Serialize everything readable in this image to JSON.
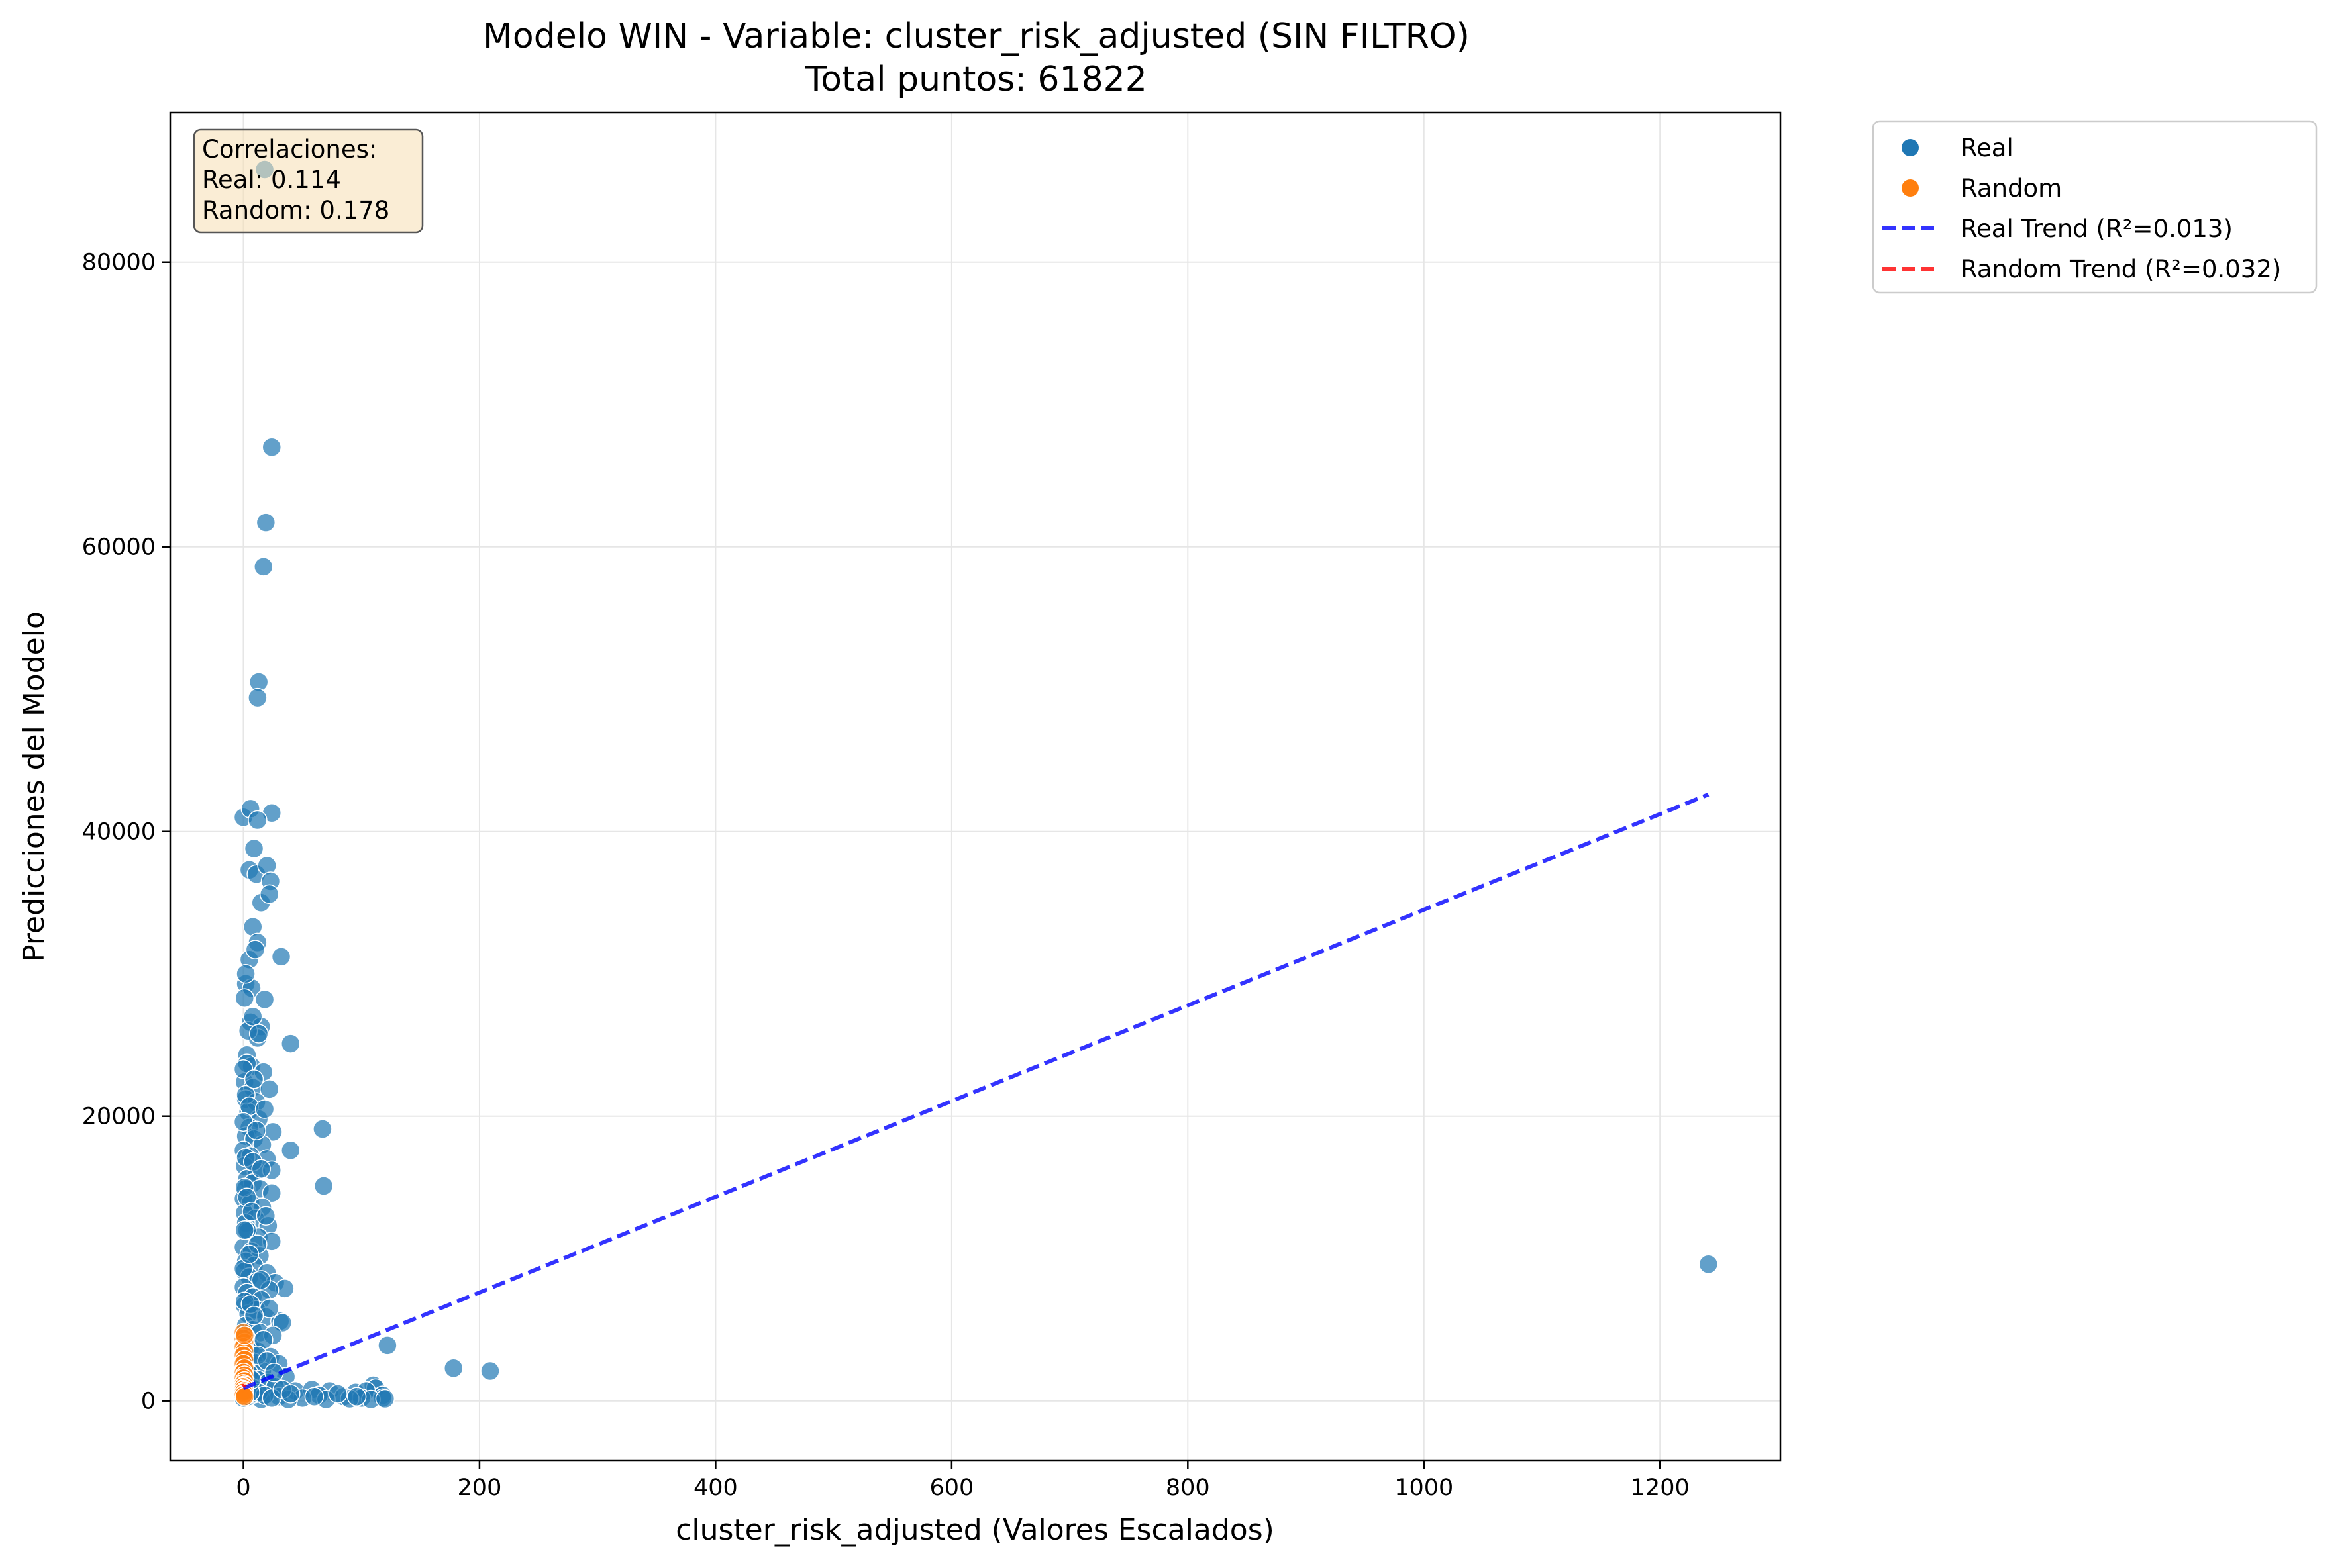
{
  "chart_data": {
    "type": "scatter",
    "title": "Modelo WIN - Variable: cluster_risk_adjusted (SIN FILTRO)",
    "subtitle": "Total puntos: 61822",
    "xlabel": "cluster_risk_adjusted (Valores Escalados)",
    "ylabel": "Predicciones del Modelo",
    "xlim": [
      -62,
      1302
    ],
    "ylim": [
      -4200,
      90500
    ],
    "xticks": [
      0,
      200,
      400,
      600,
      800,
      1000,
      1200
    ],
    "yticks": [
      0,
      20000,
      40000,
      60000,
      80000
    ],
    "grid": true,
    "legend_position": "outside-top-right",
    "colors": {
      "real": "#1f77b4",
      "random": "#ff7f0e",
      "real_trend": "#0000ff",
      "random_trend": "#ff0000"
    },
    "annotation": {
      "lines": [
        "Correlaciones:",
        "Real: 0.114",
        "Random: 0.178"
      ]
    },
    "legend": [
      {
        "key": "real",
        "label": "Real"
      },
      {
        "key": "random",
        "label": "Random"
      },
      {
        "key": "real_trend",
        "label": "Real Trend (R²=0.013)"
      },
      {
        "key": "random_trend",
        "label": "Random Trend (R²=0.032)"
      }
    ],
    "series": [
      {
        "name": "Real",
        "points": [
          [
            0,
            41000
          ],
          [
            6,
            41600
          ],
          [
            24,
            41300
          ],
          [
            12,
            40800
          ],
          [
            9,
            38800
          ],
          [
            5,
            37300
          ],
          [
            11,
            37000
          ],
          [
            20,
            37600
          ],
          [
            23,
            36500
          ],
          [
            15,
            35000
          ],
          [
            22,
            35600
          ],
          [
            8,
            33300
          ],
          [
            12,
            32200
          ],
          [
            5,
            31000
          ],
          [
            10,
            31700
          ],
          [
            32,
            31200
          ],
          [
            2,
            29300
          ],
          [
            7,
            29000
          ],
          [
            18,
            28200
          ],
          [
            1,
            28300
          ],
          [
            6,
            26600
          ],
          [
            15,
            26300
          ],
          [
            12,
            25500
          ],
          [
            40,
            25100
          ],
          [
            3,
            24300
          ],
          [
            7,
            23500
          ],
          [
            17,
            23100
          ],
          [
            1,
            22400
          ],
          [
            8,
            22000
          ],
          [
            22,
            21900
          ],
          [
            2,
            21200
          ],
          [
            11,
            21000
          ],
          [
            4,
            20300
          ],
          [
            13,
            19800
          ],
          [
            5,
            19200
          ],
          [
            25,
            18900
          ],
          [
            67,
            19100
          ],
          [
            2,
            18600
          ],
          [
            9,
            18400
          ],
          [
            16,
            18000
          ],
          [
            0,
            17600
          ],
          [
            6,
            17200
          ],
          [
            40,
            17600
          ],
          [
            20,
            17000
          ],
          [
            1,
            16500
          ],
          [
            11,
            16100
          ],
          [
            24,
            16200
          ],
          [
            3,
            15600
          ],
          [
            8,
            15300
          ],
          [
            68,
            15100
          ],
          [
            2,
            14900
          ],
          [
            14,
            14900
          ],
          [
            24,
            14600
          ],
          [
            0,
            14200
          ],
          [
            6,
            13900
          ],
          [
            16,
            13600
          ],
          [
            1,
            13200
          ],
          [
            10,
            12800
          ],
          [
            2,
            12500
          ],
          [
            21,
            12300
          ],
          [
            4,
            11900
          ],
          [
            13,
            11500
          ],
          [
            24,
            11200
          ],
          [
            0,
            10800
          ],
          [
            7,
            10500
          ],
          [
            14,
            10200
          ],
          [
            2,
            9800
          ],
          [
            9,
            9500
          ],
          [
            1,
            9100
          ],
          [
            20,
            9000
          ],
          [
            5,
            8700
          ],
          [
            12,
            8400
          ],
          [
            27,
            8300
          ],
          [
            0,
            8000
          ],
          [
            35,
            7900
          ],
          [
            22,
            7800
          ],
          [
            3,
            7600
          ],
          [
            8,
            7300
          ],
          [
            15,
            7100
          ],
          [
            1,
            6700
          ],
          [
            11,
            6400
          ],
          [
            4,
            6100
          ],
          [
            19,
            5900
          ],
          [
            31,
            5600
          ],
          [
            33,
            5500
          ],
          [
            2,
            5300
          ],
          [
            8,
            5000
          ],
          [
            14,
            4800
          ],
          [
            25,
            4600
          ],
          [
            122,
            3900
          ],
          [
            0,
            4200
          ],
          [
            6,
            3800
          ],
          [
            12,
            3500
          ],
          [
            23,
            3100
          ],
          [
            3,
            3000
          ],
          [
            9,
            2700
          ],
          [
            30,
            2600
          ],
          [
            1,
            2400
          ],
          [
            178,
            2300
          ],
          [
            209,
            2100
          ],
          [
            16,
            2100
          ],
          [
            5,
            1900
          ],
          [
            36,
            1700
          ],
          [
            12,
            1500
          ],
          [
            21,
            1300
          ],
          [
            3,
            1200
          ],
          [
            27,
            1000
          ],
          [
            8,
            900
          ],
          [
            44,
            700
          ],
          [
            58,
            800
          ],
          [
            73,
            700
          ],
          [
            95,
            600
          ],
          [
            110,
            1100
          ],
          [
            112,
            900
          ],
          [
            104,
            700
          ],
          [
            118,
            400
          ],
          [
            64,
            400
          ],
          [
            85,
            300
          ],
          [
            100,
            200
          ],
          [
            118,
            200
          ],
          [
            30,
            300
          ],
          [
            50,
            200
          ],
          [
            70,
            100
          ],
          [
            90,
            150
          ],
          [
            108,
            100
          ],
          [
            120,
            150
          ],
          [
            15,
            100
          ],
          [
            38,
            100
          ],
          [
            0,
            200
          ],
          [
            4,
            300
          ],
          [
            9,
            500
          ],
          [
            13,
            600
          ],
          [
            18,
            400
          ],
          [
            24,
            200
          ],
          [
            1241,
            9600
          ],
          [
            6,
            600
          ],
          [
            1,
            15000
          ],
          [
            2,
            21500
          ],
          [
            0,
            9300
          ],
          [
            3,
            12000
          ],
          [
            4,
            26000
          ],
          [
            2,
            30000
          ],
          [
            8,
            27000
          ],
          [
            13,
            25800
          ],
          [
            3,
            23700
          ],
          [
            0,
            23300
          ],
          [
            9,
            22600
          ],
          [
            5,
            20700
          ],
          [
            18,
            20500
          ],
          [
            0,
            19600
          ],
          [
            11,
            19000
          ],
          [
            2,
            17100
          ],
          [
            8,
            16800
          ],
          [
            15,
            16300
          ],
          [
            3,
            14300
          ],
          [
            7,
            13300
          ],
          [
            19,
            13000
          ],
          [
            1,
            12000
          ],
          [
            12,
            11000
          ],
          [
            5,
            10300
          ],
          [
            15,
            8500
          ],
          [
            1,
            7000
          ],
          [
            6,
            6800
          ],
          [
            22,
            6500
          ],
          [
            9,
            6000
          ],
          [
            2,
            4500
          ],
          [
            17,
            4300
          ],
          [
            12,
            3200
          ],
          [
            20,
            2800
          ],
          [
            26,
            2000
          ],
          [
            7,
            1500
          ],
          [
            33,
            800
          ],
          [
            40,
            500
          ],
          [
            60,
            300
          ],
          [
            80,
            500
          ],
          [
            96,
            300
          ],
          [
            24,
            67000
          ],
          [
            19,
            61700
          ],
          [
            17,
            58600
          ],
          [
            13,
            50500
          ],
          [
            12,
            49400
          ],
          [
            18,
            86500
          ]
        ]
      },
      {
        "name": "Random",
        "points": [
          [
            0,
            4400
          ],
          [
            1,
            4100
          ],
          [
            0,
            3800
          ],
          [
            1,
            3500
          ],
          [
            0,
            3200
          ],
          [
            1,
            2900
          ],
          [
            0,
            2600
          ],
          [
            1,
            2300
          ],
          [
            0,
            2000
          ],
          [
            1,
            1800
          ],
          [
            0,
            1600
          ],
          [
            1,
            1400
          ],
          [
            0,
            1200
          ],
          [
            1,
            1100
          ],
          [
            0,
            1000
          ],
          [
            1,
            900
          ],
          [
            0,
            800
          ],
          [
            1,
            700
          ],
          [
            0,
            600
          ],
          [
            1,
            500
          ],
          [
            0,
            400
          ],
          [
            1,
            300
          ],
          [
            0,
            4800
          ],
          [
            1,
            4600
          ]
        ]
      }
    ],
    "trend_lines": [
      {
        "name": "Real Trend (R²=0.013)",
        "x": [
          0,
          1241
        ],
        "y": [
          900,
          42600
        ]
      },
      {
        "name": "Random Trend (R²=0.032)",
        "x": [
          0,
          1
        ],
        "y": [
          1000,
          1150
        ]
      }
    ]
  }
}
